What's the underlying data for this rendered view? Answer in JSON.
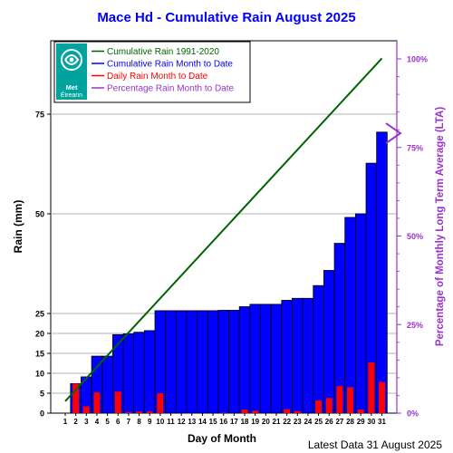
{
  "chart_data": {
    "type": "bar",
    "title": "Mace Hd - Cumulative Rain August   2025",
    "xlabel": "Day of Month",
    "ylabel": "Rain (mm)",
    "y2label": "Percentage of Monthly Long Term Average (LTA)",
    "footer": "Latest Data 31 August 2025",
    "logo_text": "Met Éireann",
    "categories": [
      "1",
      "2",
      "3",
      "4",
      "5",
      "6",
      "7",
      "8",
      "9",
      "10",
      "11",
      "12",
      "13",
      "14",
      "15",
      "16",
      "17",
      "18",
      "19",
      "20",
      "21",
      "22",
      "23",
      "24",
      "25",
      "26",
      "27",
      "28",
      "29",
      "30",
      "31"
    ],
    "ylim": [
      0,
      100
    ],
    "y_ticks": [
      0,
      5,
      10,
      15,
      20,
      25,
      50,
      75
    ],
    "y2_ticks": [
      "0%",
      "25%",
      "50%",
      "75%",
      "100%"
    ],
    "series": [
      {
        "name": "Cumulative Rain 1991-2020",
        "type": "line",
        "color": "#006400",
        "x": [
          1,
          31
        ],
        "values": [
          3.0,
          89.0
        ]
      },
      {
        "name": "Cumulative Rain Month to Date",
        "type": "bar",
        "color": "#0000ff",
        "values": [
          0,
          7.4,
          9.1,
          14.3,
          14.3,
          19.7,
          19.9,
          20.3,
          20.7,
          25.7,
          25.7,
          25.7,
          25.7,
          25.7,
          25.7,
          25.8,
          25.8,
          26.7,
          27.3,
          27.3,
          27.3,
          28.3,
          28.8,
          28.8,
          32.0,
          35.8,
          42.6,
          49.1,
          50.0,
          62.7,
          70.5
        ]
      },
      {
        "name": "Daily Rain Month to Date",
        "type": "bar",
        "color": "#ff0000",
        "values": [
          0,
          7.4,
          1.7,
          5.2,
          0,
          5.4,
          0.2,
          0.4,
          0.4,
          5.0,
          0,
          0,
          0,
          0,
          0,
          0.1,
          0,
          0.9,
          0.6,
          0,
          0,
          1.0,
          0.5,
          0,
          3.2,
          3.8,
          6.8,
          6.5,
          0.9,
          12.7,
          7.8
        ]
      },
      {
        "name": "Percentage Rain Month to Date",
        "type": "marker",
        "color": "#9933cc",
        "value": 79
      }
    ]
  }
}
